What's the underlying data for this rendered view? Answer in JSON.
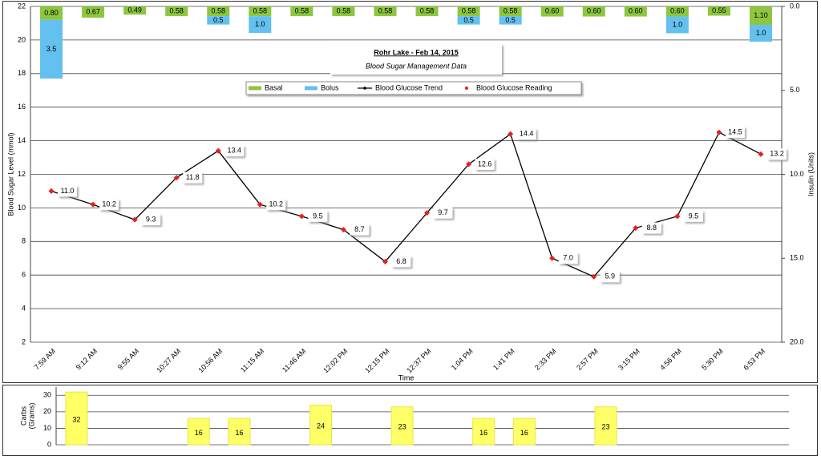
{
  "chart_data": [
    {
      "type": "combo",
      "title": "Rohr Lake - Feb 14, 2015",
      "subtitle": "Blood Sugar Management Data",
      "xlabel": "Time",
      "ylabel": "Blood Sugar Level  (mmol)",
      "y2label": "Insulin (Units)",
      "categories": [
        "7:59 AM",
        "9:12 AM",
        "9:55 AM",
        "10:27 AM",
        "10:56 AM",
        "11:15 AM",
        "11:46 AM",
        "12:02 PM",
        "12:15 PM",
        "12:37 PM",
        "1:04 PM",
        "1:41 PM",
        "2:33 PM",
        "2:57 PM",
        "3:15 PM",
        "4:56 PM",
        "5:30 PM",
        "6:53 PM"
      ],
      "ylim": [
        2,
        22
      ],
      "yticks": [
        2,
        4,
        6,
        8,
        10,
        12,
        14,
        16,
        18,
        20,
        22
      ],
      "y2lim": [
        0,
        20
      ],
      "y2_inverted": true,
      "y2ticks": [
        {
          "value": 0,
          "label": "0.0"
        },
        {
          "value": 5,
          "label": "5.0"
        },
        {
          "value": 10,
          "label": "10.0"
        },
        {
          "value": 15,
          "label": "15.0"
        },
        {
          "value": 20,
          "label": "20.0"
        }
      ],
      "grid": true,
      "series": [
        {
          "name": "Basal",
          "kind": "bar",
          "axis": "y2",
          "stacked": true,
          "color": "#8dc63f",
          "values": [
            0.8,
            0.67,
            0.49,
            0.58,
            0.58,
            0.58,
            0.58,
            0.58,
            0.58,
            0.58,
            0.58,
            0.58,
            0.6,
            0.6,
            0.6,
            0.6,
            0.55,
            1.1
          ],
          "value_labels": [
            "0.80",
            "0.67",
            "0.49",
            "0.58",
            "0.58",
            "0.58",
            "0.58",
            "0.58",
            "0.58",
            "0.58",
            "0.58",
            "0.58",
            "0.60",
            "0.60",
            "0.60",
            "0.60",
            "0.55",
            "1.10"
          ]
        },
        {
          "name": "Bolus",
          "kind": "bar",
          "axis": "y2",
          "stacked": true,
          "color": "#63c0ef",
          "values": [
            3.5,
            null,
            null,
            null,
            0.5,
            1.0,
            null,
            null,
            null,
            null,
            0.5,
            0.5,
            null,
            null,
            null,
            1.0,
            null,
            1.0
          ],
          "value_labels": [
            "3.5",
            null,
            null,
            null,
            "0.5",
            "1.0",
            null,
            null,
            null,
            null,
            "0.5",
            "0.5",
            null,
            null,
            null,
            "1.0",
            null,
            "1.0"
          ]
        },
        {
          "name": "Blood Glucose Reading",
          "line_name": "Blood Glucose Trend",
          "kind": "line",
          "color": "#e8211d",
          "line_color": "#000000",
          "values": [
            11.0,
            10.2,
            9.3,
            11.8,
            13.4,
            10.2,
            9.5,
            8.7,
            6.8,
            9.7,
            12.6,
            14.4,
            7.0,
            5.9,
            8.8,
            9.5,
            14.5,
            13.2
          ],
          "value_labels": [
            "11.0",
            "10.2",
            "9.3",
            "11.8",
            "13.4",
            "10.2",
            "9.5",
            "8.7",
            "6.8",
            "9.7",
            "12.6",
            "14.4",
            "7.0",
            "5.9",
            "8.8",
            "9.5",
            "14.5",
            "13.2"
          ]
        }
      ]
    },
    {
      "type": "bar",
      "ylabel": [
        "Carbs",
        "(Grams)"
      ],
      "color": "#ffff66",
      "values": [
        32,
        null,
        null,
        16,
        16,
        null,
        24,
        null,
        23,
        null,
        16,
        16,
        null,
        23,
        null,
        null,
        null,
        null
      ],
      "ylim": [
        0,
        35
      ],
      "yticks": [
        0,
        10,
        20,
        30
      ],
      "grid": true
    }
  ]
}
